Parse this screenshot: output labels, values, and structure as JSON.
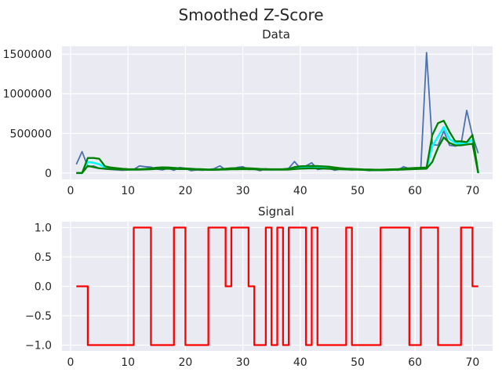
{
  "figure": {
    "suptitle": "Smoothed Z-Score"
  },
  "colors": {
    "background": "#eaeaf2",
    "grid": "#ffffff",
    "data": "#4c72b0",
    "avg": "#00ffff",
    "band": "#008000",
    "signal": "#ff0000"
  },
  "chart_data": [
    {
      "type": "line",
      "title": "Data",
      "xlabel": "",
      "ylabel": "",
      "xlim": [
        -1.5,
        73.5
      ],
      "ylim": [
        -80000,
        1600000
      ],
      "xticks": [
        0,
        10,
        20,
        30,
        40,
        50,
        60,
        70
      ],
      "xtick_labels": [
        "0",
        "10",
        "20",
        "30",
        "40",
        "50",
        "60",
        "70"
      ],
      "yticks": [
        0,
        500000,
        1000000,
        1500000
      ],
      "ytick_labels": [
        "0",
        "500000",
        "1000000",
        "1500000"
      ],
      "grid": true,
      "x": [
        1,
        2,
        3,
        4,
        5,
        6,
        7,
        8,
        9,
        10,
        11,
        12,
        13,
        14,
        15,
        16,
        17,
        18,
        19,
        20,
        21,
        22,
        23,
        24,
        25,
        26,
        27,
        28,
        29,
        30,
        31,
        32,
        33,
        34,
        35,
        36,
        37,
        38,
        39,
        40,
        41,
        42,
        43,
        44,
        45,
        46,
        47,
        48,
        49,
        50,
        51,
        52,
        53,
        54,
        55,
        56,
        57,
        58,
        59,
        60,
        61,
        62,
        63,
        64,
        65,
        66,
        67,
        68,
        69,
        70,
        71
      ],
      "series": [
        {
          "role": "data",
          "values": [
            110000,
            270000,
            80000,
            90000,
            60000,
            50000,
            45000,
            40000,
            35000,
            40000,
            45000,
            90000,
            80000,
            75000,
            50000,
            40000,
            60000,
            35000,
            70000,
            60000,
            30000,
            40000,
            35000,
            45000,
            55000,
            90000,
            40000,
            50000,
            70000,
            80000,
            45000,
            50000,
            30000,
            55000,
            40000,
            50000,
            45000,
            60000,
            145000,
            60000,
            90000,
            130000,
            45000,
            55000,
            60000,
            35000,
            50000,
            45000,
            40000,
            45000,
            40000,
            30000,
            35000,
            40000,
            45000,
            50000,
            35000,
            80000,
            55000,
            60000,
            55000,
            1520000,
            360000,
            350000,
            530000,
            350000,
            340000,
            360000,
            790000,
            470000,
            250000
          ]
        },
        {
          "role": "filter",
          "values": [
            0,
            0,
            140000,
            130000,
            110000,
            70000,
            60000,
            55000,
            50000,
            45000,
            45000,
            45000,
            50000,
            55000,
            60000,
            62000,
            60000,
            58000,
            55000,
            55000,
            50000,
            48000,
            45000,
            42000,
            42000,
            45000,
            50000,
            52000,
            55000,
            55000,
            54000,
            52000,
            48000,
            46000,
            45000,
            45000,
            46000,
            48000,
            60000,
            68000,
            70000,
            72000,
            70000,
            68000,
            66000,
            60000,
            55000,
            50000,
            48000,
            45000,
            42000,
            40000,
            38000,
            38000,
            40000,
            42000,
            45000,
            48000,
            52000,
            55000,
            58000,
            60000,
            340000,
            460000,
            580000,
            430000,
            380000,
            370000,
            380000,
            420000,
            0
          ]
        },
        {
          "role": "upper-band",
          "values": [
            0,
            0,
            190000,
            190000,
            180000,
            85000,
            70000,
            62000,
            55000,
            50000,
            48000,
            48000,
            52000,
            58000,
            68000,
            72000,
            70000,
            66000,
            60000,
            58000,
            54000,
            50000,
            48000,
            45000,
            44000,
            48000,
            55000,
            60000,
            62000,
            62000,
            60000,
            57000,
            52000,
            50000,
            48000,
            48000,
            50000,
            54000,
            75000,
            85000,
            88000,
            90000,
            88000,
            84000,
            80000,
            70000,
            62000,
            56000,
            53000,
            50000,
            46000,
            44000,
            42000,
            42000,
            44000,
            47000,
            50000,
            55000,
            60000,
            64000,
            67000,
            70000,
            480000,
            630000,
            660000,
            520000,
            400000,
            400000,
            390000,
            480000,
            0
          ]
        },
        {
          "role": "lower-band",
          "values": [
            0,
            0,
            90000,
            75000,
            60000,
            55000,
            50000,
            48000,
            45000,
            42000,
            42000,
            42000,
            45000,
            48000,
            52000,
            55000,
            54000,
            52000,
            50000,
            50000,
            46000,
            44000,
            42000,
            40000,
            40000,
            42000,
            45000,
            47000,
            48000,
            50000,
            49000,
            47000,
            44000,
            42000,
            42000,
            42000,
            43000,
            44000,
            50000,
            55000,
            58000,
            60000,
            58000,
            56000,
            54000,
            50000,
            48000,
            45000,
            43000,
            42000,
            40000,
            38000,
            36000,
            36000,
            38000,
            40000,
            42000,
            44000,
            47000,
            50000,
            52000,
            55000,
            140000,
            320000,
            450000,
            380000,
            350000,
            350000,
            360000,
            370000,
            0
          ]
        }
      ]
    },
    {
      "type": "line",
      "title": "Signal",
      "xlabel": "",
      "ylabel": "",
      "xlim": [
        -1.5,
        73.5
      ],
      "ylim": [
        -1.1,
        1.1
      ],
      "xticks": [
        0,
        10,
        20,
        30,
        40,
        50,
        60,
        70
      ],
      "xtick_labels": [
        "0",
        "10",
        "20",
        "30",
        "40",
        "50",
        "60",
        "70"
      ],
      "yticks": [
        1.0,
        0.5,
        0.0,
        -0.5,
        -1.0
      ],
      "ytick_labels": [
        "1.0",
        "0.5",
        "0.0",
        "−0.5",
        "−1.0"
      ],
      "grid": true,
      "step": "post",
      "x": [
        1,
        2,
        3,
        4,
        5,
        6,
        7,
        8,
        9,
        10,
        11,
        12,
        13,
        14,
        15,
        16,
        17,
        18,
        19,
        20,
        21,
        22,
        23,
        24,
        25,
        26,
        27,
        28,
        29,
        30,
        31,
        32,
        33,
        34,
        35,
        36,
        37,
        38,
        39,
        40,
        41,
        42,
        43,
        44,
        45,
        46,
        47,
        48,
        49,
        50,
        51,
        52,
        53,
        54,
        55,
        56,
        57,
        58,
        59,
        60,
        61,
        62,
        63,
        64,
        65,
        66,
        67,
        68,
        69,
        70,
        71
      ],
      "series": [
        {
          "role": "signal",
          "values": [
            0,
            0,
            -1,
            -1,
            -1,
            -1,
            -1,
            -1,
            -1,
            -1,
            1,
            1,
            1,
            -1,
            -1,
            -1,
            -1,
            1,
            1,
            -1,
            -1,
            -1,
            -1,
            1,
            1,
            1,
            0,
            1,
            1,
            1,
            0,
            -1,
            -1,
            1,
            -1,
            1,
            -1,
            1,
            1,
            1,
            -1,
            1,
            -1,
            -1,
            -1,
            -1,
            -1,
            1,
            -1,
            -1,
            -1,
            -1,
            -1,
            1,
            1,
            1,
            1,
            1,
            -1,
            -1,
            1,
            1,
            1,
            -1,
            -1,
            -1,
            -1,
            1,
            1,
            0,
            0
          ]
        }
      ]
    }
  ]
}
